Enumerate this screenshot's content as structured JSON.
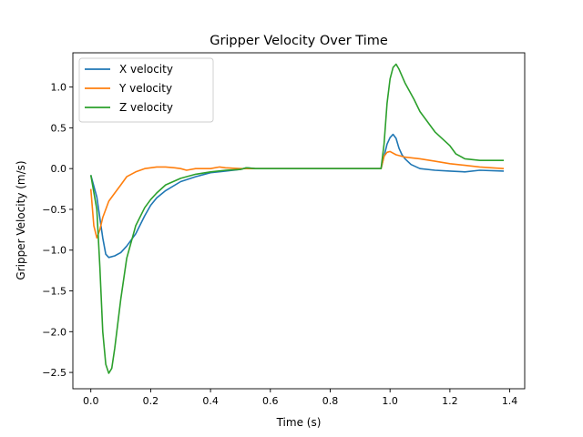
{
  "chart_data": {
    "type": "line",
    "title": "Gripper Velocity Over Time",
    "xlabel": "Time (s)",
    "ylabel": "Gripper Velocity (m/s)",
    "xlim": [
      -0.06,
      1.45
    ],
    "ylim": [
      -2.7,
      1.42
    ],
    "xticks": [
      0.0,
      0.2,
      0.4,
      0.6,
      0.8,
      1.0,
      1.2,
      1.4
    ],
    "xtick_labels": [
      "0.0",
      "0.2",
      "0.4",
      "0.6",
      "0.8",
      "1.0",
      "1.2",
      "1.4"
    ],
    "yticks": [
      -2.5,
      -2.0,
      -1.5,
      -1.0,
      -0.5,
      0.0,
      0.5,
      1.0
    ],
    "ytick_labels": [
      "−2.5",
      "−2.0",
      "−1.5",
      "−1.0",
      "−0.5",
      "0.0",
      "0.5",
      "1.0"
    ],
    "grid": false,
    "legend_position": "top-left",
    "series": [
      {
        "name": "X velocity",
        "color": "#1f77b4",
        "x": [
          0.0,
          0.02,
          0.04,
          0.05,
          0.06,
          0.08,
          0.1,
          0.12,
          0.15,
          0.18,
          0.2,
          0.22,
          0.25,
          0.3,
          0.35,
          0.4,
          0.45,
          0.5,
          0.52,
          0.55,
          0.6,
          0.7,
          0.8,
          0.9,
          0.97,
          0.98,
          0.99,
          1.0,
          1.01,
          1.02,
          1.03,
          1.04,
          1.05,
          1.07,
          1.1,
          1.15,
          1.2,
          1.25,
          1.3,
          1.38
        ],
        "y": [
          -0.08,
          -0.35,
          -0.85,
          -1.05,
          -1.09,
          -1.07,
          -1.03,
          -0.95,
          -0.8,
          -0.58,
          -0.45,
          -0.36,
          -0.27,
          -0.16,
          -0.1,
          -0.05,
          -0.03,
          -0.01,
          0.01,
          0.0,
          0.0,
          0.0,
          0.0,
          0.0,
          0.0,
          0.15,
          0.3,
          0.38,
          0.42,
          0.37,
          0.25,
          0.17,
          0.12,
          0.05,
          0.0,
          -0.02,
          -0.03,
          -0.04,
          -0.02,
          -0.03
        ]
      },
      {
        "name": "Y velocity",
        "color": "#ff7f0e",
        "x": [
          0.0,
          0.01,
          0.02,
          0.03,
          0.04,
          0.05,
          0.06,
          0.08,
          0.1,
          0.12,
          0.15,
          0.18,
          0.2,
          0.22,
          0.25,
          0.28,
          0.3,
          0.32,
          0.35,
          0.38,
          0.4,
          0.43,
          0.45,
          0.5,
          0.55,
          0.6,
          0.7,
          0.8,
          0.9,
          0.97,
          0.98,
          0.99,
          1.0,
          1.02,
          1.05,
          1.1,
          1.15,
          1.2,
          1.25,
          1.3,
          1.38
        ],
        "y": [
          -0.25,
          -0.7,
          -0.85,
          -0.75,
          -0.6,
          -0.5,
          -0.4,
          -0.3,
          -0.2,
          -0.1,
          -0.04,
          0.0,
          0.01,
          0.02,
          0.02,
          0.01,
          0.0,
          -0.02,
          0.0,
          0.0,
          0.0,
          0.02,
          0.01,
          0.0,
          0.0,
          0.0,
          0.0,
          0.0,
          0.0,
          0.0,
          0.15,
          0.2,
          0.21,
          0.17,
          0.14,
          0.12,
          0.09,
          0.06,
          0.04,
          0.02,
          0.0
        ]
      },
      {
        "name": "Z velocity",
        "color": "#2ca02c",
        "x": [
          0.0,
          0.02,
          0.03,
          0.04,
          0.05,
          0.06,
          0.07,
          0.08,
          0.1,
          0.12,
          0.15,
          0.18,
          0.2,
          0.22,
          0.25,
          0.3,
          0.35,
          0.4,
          0.45,
          0.5,
          0.52,
          0.55,
          0.6,
          0.7,
          0.8,
          0.9,
          0.97,
          0.98,
          0.99,
          1.0,
          1.01,
          1.02,
          1.03,
          1.05,
          1.08,
          1.1,
          1.15,
          1.2,
          1.22,
          1.25,
          1.3,
          1.38
        ],
        "y": [
          -0.08,
          -0.5,
          -1.2,
          -2.0,
          -2.4,
          -2.51,
          -2.45,
          -2.2,
          -1.6,
          -1.1,
          -0.7,
          -0.48,
          -0.38,
          -0.3,
          -0.2,
          -0.12,
          -0.07,
          -0.04,
          -0.02,
          -0.01,
          0.01,
          0.0,
          0.0,
          0.0,
          0.0,
          0.0,
          0.0,
          0.3,
          0.8,
          1.1,
          1.24,
          1.28,
          1.22,
          1.05,
          0.85,
          0.7,
          0.45,
          0.28,
          0.18,
          0.12,
          0.1,
          0.1
        ]
      }
    ]
  }
}
